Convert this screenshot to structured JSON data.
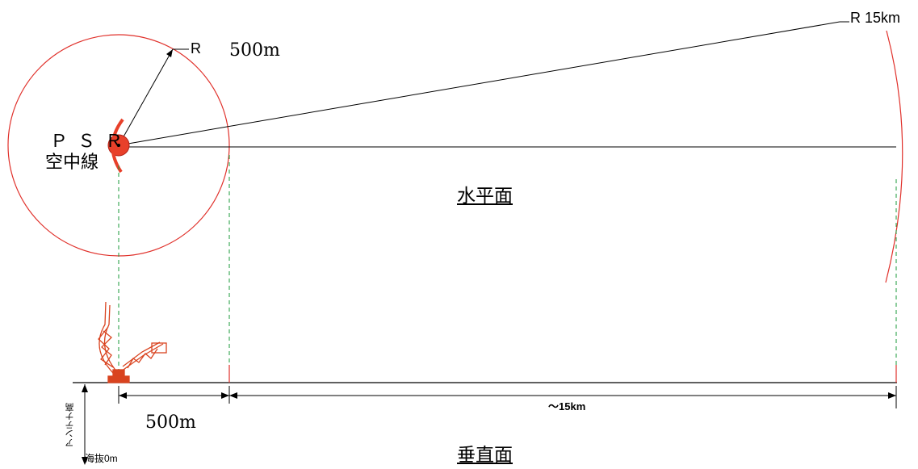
{
  "labels": {
    "r_main": "R",
    "r_500_horizontal": "500m",
    "r_15km": "R 15km",
    "psr_name": "ＰＳＲ",
    "psr_sub": "空中線",
    "horizontal_plane": "水平面",
    "vertical_plane": "垂直面",
    "dim_500": "500m",
    "dim_15km": "〜15km",
    "sea_level": "海抜0m",
    "antenna_height": "アンテナ高"
  },
  "colors": {
    "line": "#000000",
    "circle": "#e0302a",
    "radar": "#e8402a",
    "tower": "#d9431f",
    "guide": "#1a9a3a"
  }
}
